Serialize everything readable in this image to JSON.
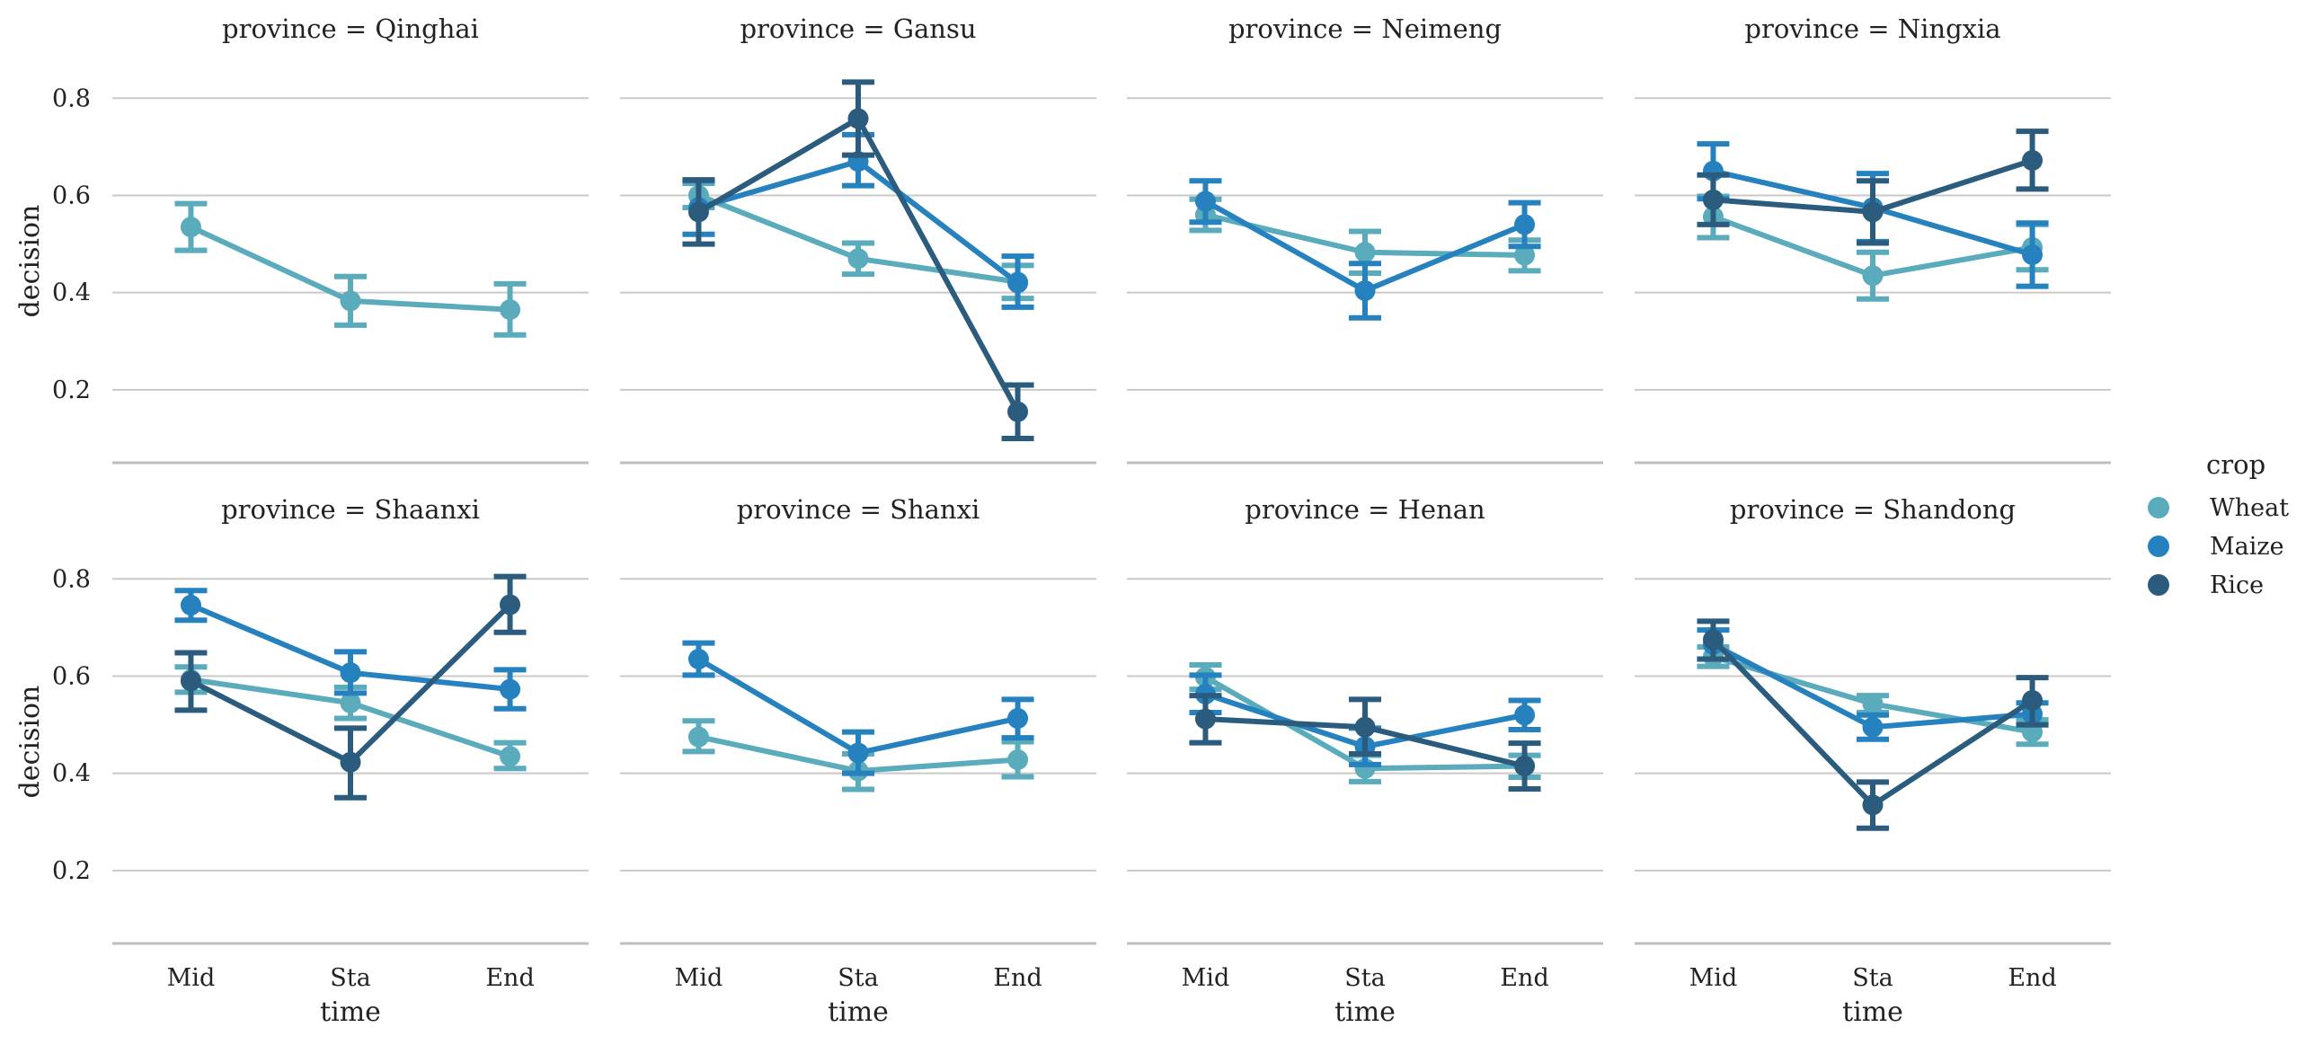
{
  "chart_data": {
    "type": "line",
    "facet_label": "province",
    "xlabel": "time",
    "ylabel": "decision",
    "categories": [
      "Mid",
      "Sta",
      "End"
    ],
    "yticks": [
      0.2,
      0.4,
      0.6,
      0.8
    ],
    "ylim": [
      0.05,
      0.88
    ],
    "grid": "horizontal",
    "legend": {
      "title": "crop",
      "placement": "right",
      "entries": [
        "Wheat",
        "Maize",
        "Rice"
      ]
    },
    "colors": {
      "Wheat": "#5aabbc",
      "Maize": "#2681bf",
      "Rice": "#2b5c7d"
    },
    "panels": [
      {
        "title": "province = Qinghai",
        "series": [
          {
            "name": "Wheat",
            "values": [
              0.535,
              0.383,
              0.365
            ],
            "ci": [
              [
                0.487,
                0.583
              ],
              [
                0.333,
                0.433
              ],
              [
                0.313,
                0.418
              ]
            ]
          }
        ]
      },
      {
        "title": "province = Gansu",
        "series": [
          {
            "name": "Wheat",
            "values": [
              0.6,
              0.47,
              0.422
            ],
            "ci": [
              [
                0.575,
                0.625
              ],
              [
                0.438,
                0.502
              ],
              [
                0.388,
                0.456
              ]
            ]
          },
          {
            "name": "Maize",
            "values": [
              0.575,
              0.67,
              0.42
            ],
            "ci": [
              [
                0.52,
                0.63
              ],
              [
                0.62,
                0.725
              ],
              [
                0.37,
                0.475
              ]
            ]
          },
          {
            "name": "Rice",
            "values": [
              0.566,
              0.758,
              0.155
            ],
            "ci": [
              [
                0.5,
                0.632
              ],
              [
                0.683,
                0.833
              ],
              [
                0.1,
                0.21
              ]
            ]
          }
        ]
      },
      {
        "title": "province = Neimeng",
        "series": [
          {
            "name": "Wheat",
            "values": [
              0.56,
              0.483,
              0.477
            ],
            "ci": [
              [
                0.528,
                0.592
              ],
              [
                0.44,
                0.526
              ],
              [
                0.445,
                0.508
              ]
            ]
          },
          {
            "name": "Maize",
            "values": [
              0.588,
              0.404,
              0.54
            ],
            "ci": [
              [
                0.545,
                0.63
              ],
              [
                0.348,
                0.46
              ],
              [
                0.495,
                0.585
              ]
            ]
          }
        ]
      },
      {
        "title": "province = Ningxia",
        "series": [
          {
            "name": "Wheat",
            "values": [
              0.556,
              0.435,
              0.493
            ],
            "ci": [
              [
                0.513,
                0.598
              ],
              [
                0.387,
                0.483
              ],
              [
                0.447,
                0.54
              ]
            ]
          },
          {
            "name": "Maize",
            "values": [
              0.65,
              0.575,
              0.478
            ],
            "ci": [
              [
                0.593,
                0.706
              ],
              [
                0.505,
                0.645
              ],
              [
                0.413,
                0.543
              ]
            ]
          },
          {
            "name": "Rice",
            "values": [
              0.591,
              0.566,
              0.672
            ],
            "ci": [
              [
                0.54,
                0.642
              ],
              [
                0.502,
                0.63
              ],
              [
                0.613,
                0.732
              ]
            ]
          }
        ]
      },
      {
        "title": "province = Shaanxi",
        "series": [
          {
            "name": "Wheat",
            "values": [
              0.593,
              0.545,
              0.435
            ],
            "ci": [
              [
                0.567,
                0.619
              ],
              [
                0.513,
                0.577
              ],
              [
                0.41,
                0.463
              ]
            ]
          },
          {
            "name": "Maize",
            "values": [
              0.746,
              0.607,
              0.573
            ],
            "ci": [
              [
                0.715,
                0.776
              ],
              [
                0.565,
                0.65
              ],
              [
                0.533,
                0.613
              ]
            ]
          },
          {
            "name": "Rice",
            "values": [
              0.59,
              0.423,
              0.747
            ],
            "ci": [
              [
                0.53,
                0.648
              ],
              [
                0.35,
                0.493
              ],
              [
                0.69,
                0.805
              ]
            ]
          }
        ]
      },
      {
        "title": "province = Shanxi",
        "series": [
          {
            "name": "Wheat",
            "values": [
              0.475,
              0.405,
              0.428
            ],
            "ci": [
              [
                0.445,
                0.508
              ],
              [
                0.367,
                0.44
              ],
              [
                0.393,
                0.465
              ]
            ]
          },
          {
            "name": "Maize",
            "values": [
              0.635,
              0.442,
              0.513
            ],
            "ci": [
              [
                0.602,
                0.668
              ],
              [
                0.4,
                0.485
              ],
              [
                0.473,
                0.552
              ]
            ]
          }
        ]
      },
      {
        "title": "province = Henan",
        "series": [
          {
            "name": "Wheat",
            "values": [
              0.598,
              0.41,
              0.415
            ],
            "ci": [
              [
                0.573,
                0.623
              ],
              [
                0.383,
                0.437
              ],
              [
                0.392,
                0.437
              ]
            ]
          },
          {
            "name": "Maize",
            "values": [
              0.563,
              0.455,
              0.52
            ],
            "ci": [
              [
                0.525,
                0.602
              ],
              [
                0.418,
                0.493
              ],
              [
                0.49,
                0.55
              ]
            ]
          },
          {
            "name": "Rice",
            "values": [
              0.512,
              0.495,
              0.415
            ],
            "ci": [
              [
                0.463,
                0.56
              ],
              [
                0.44,
                0.552
              ],
              [
                0.368,
                0.462
              ]
            ]
          }
        ]
      },
      {
        "title": "province = Shandong",
        "series": [
          {
            "name": "Wheat",
            "values": [
              0.64,
              0.543,
              0.485
            ],
            "ci": [
              [
                0.62,
                0.66
              ],
              [
                0.525,
                0.56
              ],
              [
                0.46,
                0.51
              ]
            ]
          },
          {
            "name": "Maize",
            "values": [
              0.665,
              0.495,
              0.522
            ],
            "ci": [
              [
                0.635,
                0.695
              ],
              [
                0.47,
                0.52
              ],
              [
                0.5,
                0.545
              ]
            ]
          },
          {
            "name": "Rice",
            "values": [
              0.675,
              0.335,
              0.55
            ],
            "ci": [
              [
                0.635,
                0.713
              ],
              [
                0.287,
                0.382
              ],
              [
                0.5,
                0.597
              ]
            ]
          }
        ]
      }
    ]
  }
}
